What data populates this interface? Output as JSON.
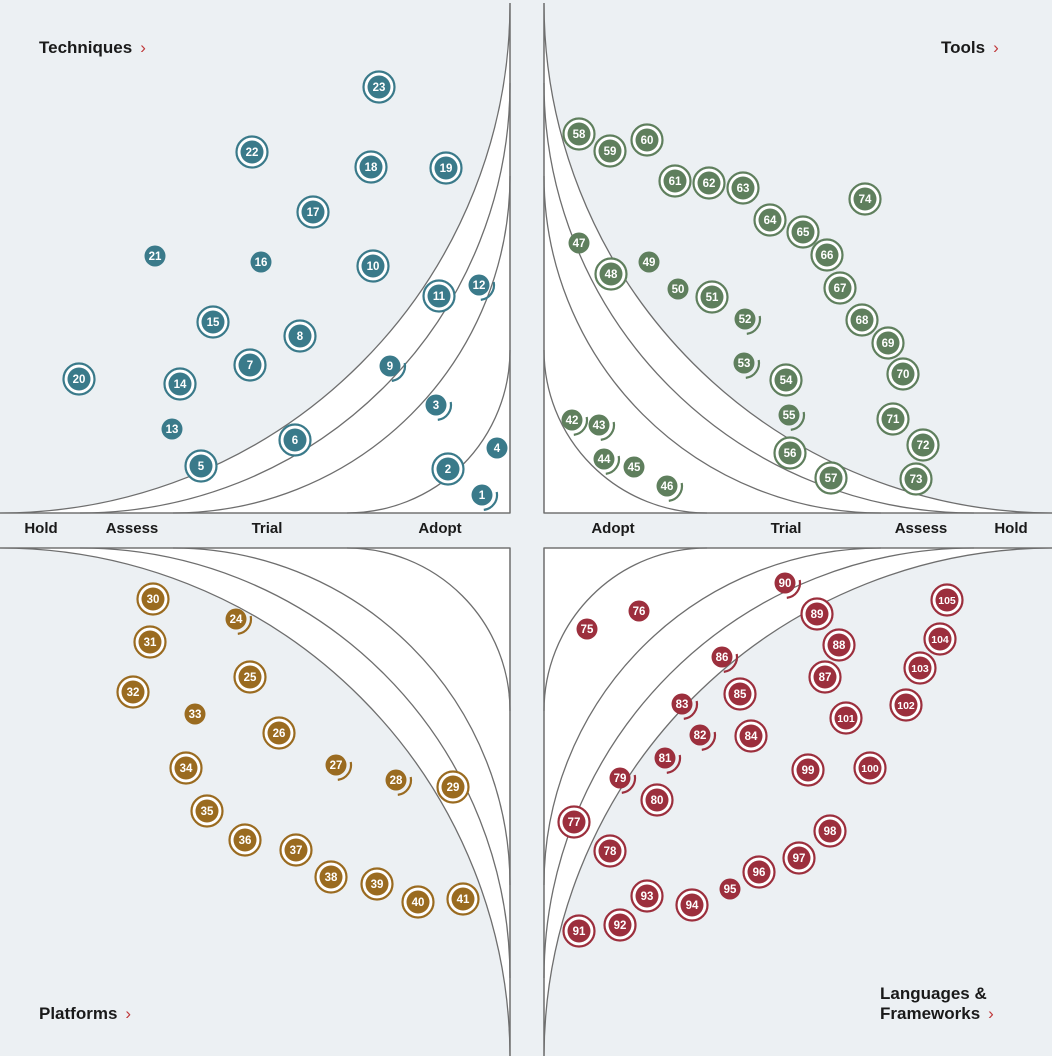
{
  "quadrants": [
    {
      "key": "techniques",
      "title": "Techniques",
      "color": "#3a7a8a",
      "side": "left",
      "vert": "top"
    },
    {
      "key": "tools",
      "title": "Tools",
      "color": "#5f7f5d",
      "side": "right",
      "vert": "top"
    },
    {
      "key": "platforms",
      "title": "Platforms",
      "color": "#9a6b20",
      "side": "left",
      "vert": "bottom"
    },
    {
      "key": "languages",
      "title": "Languages & Frameworks",
      "title_line1": "Languages &",
      "title_line2": "Frameworks",
      "color": "#9c2f3d",
      "side": "right",
      "vert": "bottom"
    }
  ],
  "chevron": "›",
  "ring_labels": {
    "left": [
      "Hold",
      "Assess",
      "Trial",
      "Adopt"
    ],
    "right": [
      "Adopt",
      "Trial",
      "Assess",
      "Hold"
    ]
  },
  "blips": [
    {
      "n": "1",
      "q": "techniques",
      "style": "moved"
    },
    {
      "n": "2",
      "q": "techniques",
      "style": "new"
    },
    {
      "n": "3",
      "q": "techniques",
      "style": "moved"
    },
    {
      "n": "4",
      "q": "techniques",
      "style": "plain"
    },
    {
      "n": "5",
      "q": "techniques",
      "style": "new"
    },
    {
      "n": "6",
      "q": "techniques",
      "style": "new"
    },
    {
      "n": "7",
      "q": "techniques",
      "style": "new"
    },
    {
      "n": "8",
      "q": "techniques",
      "style": "new"
    },
    {
      "n": "9",
      "q": "techniques",
      "style": "moved"
    },
    {
      "n": "10",
      "q": "techniques",
      "style": "new"
    },
    {
      "n": "11",
      "q": "techniques",
      "style": "new"
    },
    {
      "n": "12",
      "q": "techniques",
      "style": "moved"
    },
    {
      "n": "13",
      "q": "techniques",
      "style": "plain"
    },
    {
      "n": "14",
      "q": "techniques",
      "style": "new"
    },
    {
      "n": "15",
      "q": "techniques",
      "style": "new"
    },
    {
      "n": "16",
      "q": "techniques",
      "style": "plain"
    },
    {
      "n": "17",
      "q": "techniques",
      "style": "new"
    },
    {
      "n": "18",
      "q": "techniques",
      "style": "new"
    },
    {
      "n": "19",
      "q": "techniques",
      "style": "new"
    },
    {
      "n": "20",
      "q": "techniques",
      "style": "new"
    },
    {
      "n": "21",
      "q": "techniques",
      "style": "plain"
    },
    {
      "n": "22",
      "q": "techniques",
      "style": "new"
    },
    {
      "n": "23",
      "q": "techniques",
      "style": "new"
    },
    {
      "n": "24",
      "q": "platforms",
      "style": "moved"
    },
    {
      "n": "25",
      "q": "platforms",
      "style": "new"
    },
    {
      "n": "26",
      "q": "platforms",
      "style": "new"
    },
    {
      "n": "27",
      "q": "platforms",
      "style": "moved"
    },
    {
      "n": "28",
      "q": "platforms",
      "style": "moved"
    },
    {
      "n": "29",
      "q": "platforms",
      "style": "new"
    },
    {
      "n": "30",
      "q": "platforms",
      "style": "new"
    },
    {
      "n": "31",
      "q": "platforms",
      "style": "new"
    },
    {
      "n": "32",
      "q": "platforms",
      "style": "new"
    },
    {
      "n": "33",
      "q": "platforms",
      "style": "plain"
    },
    {
      "n": "34",
      "q": "platforms",
      "style": "new"
    },
    {
      "n": "35",
      "q": "platforms",
      "style": "new"
    },
    {
      "n": "36",
      "q": "platforms",
      "style": "new"
    },
    {
      "n": "37",
      "q": "platforms",
      "style": "new"
    },
    {
      "n": "38",
      "q": "platforms",
      "style": "new"
    },
    {
      "n": "39",
      "q": "platforms",
      "style": "new"
    },
    {
      "n": "40",
      "q": "platforms",
      "style": "new"
    },
    {
      "n": "41",
      "q": "platforms",
      "style": "new"
    },
    {
      "n": "42",
      "q": "tools",
      "style": "moved"
    },
    {
      "n": "43",
      "q": "tools",
      "style": "moved"
    },
    {
      "n": "44",
      "q": "tools",
      "style": "moved"
    },
    {
      "n": "45",
      "q": "tools",
      "style": "plain"
    },
    {
      "n": "46",
      "q": "tools",
      "style": "moved"
    },
    {
      "n": "47",
      "q": "tools",
      "style": "plain"
    },
    {
      "n": "48",
      "q": "tools",
      "style": "new"
    },
    {
      "n": "49",
      "q": "tools",
      "style": "plain"
    },
    {
      "n": "50",
      "q": "tools",
      "style": "plain"
    },
    {
      "n": "51",
      "q": "tools",
      "style": "new"
    },
    {
      "n": "52",
      "q": "tools",
      "style": "moved"
    },
    {
      "n": "53",
      "q": "tools",
      "style": "moved"
    },
    {
      "n": "54",
      "q": "tools",
      "style": "new"
    },
    {
      "n": "55",
      "q": "tools",
      "style": "moved"
    },
    {
      "n": "56",
      "q": "tools",
      "style": "new"
    },
    {
      "n": "57",
      "q": "tools",
      "style": "new"
    },
    {
      "n": "58",
      "q": "tools",
      "style": "new"
    },
    {
      "n": "59",
      "q": "tools",
      "style": "new"
    },
    {
      "n": "60",
      "q": "tools",
      "style": "new"
    },
    {
      "n": "61",
      "q": "tools",
      "style": "new"
    },
    {
      "n": "62",
      "q": "tools",
      "style": "new"
    },
    {
      "n": "63",
      "q": "tools",
      "style": "new"
    },
    {
      "n": "64",
      "q": "tools",
      "style": "new"
    },
    {
      "n": "65",
      "q": "tools",
      "style": "new"
    },
    {
      "n": "66",
      "q": "tools",
      "style": "new"
    },
    {
      "n": "67",
      "q": "tools",
      "style": "new"
    },
    {
      "n": "68",
      "q": "tools",
      "style": "new"
    },
    {
      "n": "69",
      "q": "tools",
      "style": "new"
    },
    {
      "n": "70",
      "q": "tools",
      "style": "new"
    },
    {
      "n": "71",
      "q": "tools",
      "style": "new"
    },
    {
      "n": "72",
      "q": "tools",
      "style": "new"
    },
    {
      "n": "73",
      "q": "tools",
      "style": "new"
    },
    {
      "n": "74",
      "q": "tools",
      "style": "new"
    },
    {
      "n": "75",
      "q": "languages",
      "style": "plain"
    },
    {
      "n": "76",
      "q": "languages",
      "style": "plain"
    },
    {
      "n": "77",
      "q": "languages",
      "style": "new"
    },
    {
      "n": "78",
      "q": "languages",
      "style": "new"
    },
    {
      "n": "79",
      "q": "languages",
      "style": "moved"
    },
    {
      "n": "80",
      "q": "languages",
      "style": "new"
    },
    {
      "n": "81",
      "q": "languages",
      "style": "moved"
    },
    {
      "n": "82",
      "q": "languages",
      "style": "moved"
    },
    {
      "n": "83",
      "q": "languages",
      "style": "moved"
    },
    {
      "n": "84",
      "q": "languages",
      "style": "new"
    },
    {
      "n": "85",
      "q": "languages",
      "style": "new"
    },
    {
      "n": "86",
      "q": "languages",
      "style": "moved"
    },
    {
      "n": "87",
      "q": "languages",
      "style": "new"
    },
    {
      "n": "88",
      "q": "languages",
      "style": "new"
    },
    {
      "n": "89",
      "q": "languages",
      "style": "new"
    },
    {
      "n": "90",
      "q": "languages",
      "style": "moved"
    },
    {
      "n": "91",
      "q": "languages",
      "style": "new"
    },
    {
      "n": "92",
      "q": "languages",
      "style": "new"
    },
    {
      "n": "93",
      "q": "languages",
      "style": "new"
    },
    {
      "n": "94",
      "q": "languages",
      "style": "new"
    },
    {
      "n": "95",
      "q": "languages",
      "style": "plain"
    },
    {
      "n": "96",
      "q": "languages",
      "style": "new"
    },
    {
      "n": "97",
      "q": "languages",
      "style": "new"
    },
    {
      "n": "98",
      "q": "languages",
      "style": "new"
    },
    {
      "n": "99",
      "q": "languages",
      "style": "new"
    },
    {
      "n": "100",
      "q": "languages",
      "style": "new"
    },
    {
      "n": "101",
      "q": "languages",
      "style": "new"
    },
    {
      "n": "102",
      "q": "languages",
      "style": "new"
    },
    {
      "n": "103",
      "q": "languages",
      "style": "new"
    },
    {
      "n": "104",
      "q": "languages",
      "style": "new"
    },
    {
      "n": "105",
      "q": "languages",
      "style": "new"
    }
  ]
}
